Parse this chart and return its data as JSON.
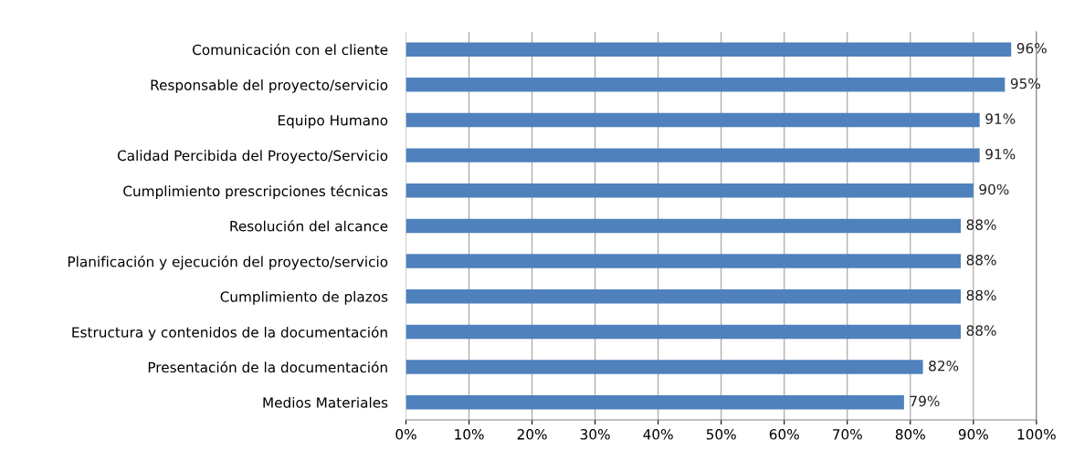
{
  "chart_data": {
    "type": "bar",
    "orientation": "horizontal",
    "categories": [
      "Comunicación con el cliente",
      "Responsable del proyecto/servicio",
      "Equipo Humano",
      "Calidad Percibida del Proyecto/Servicio",
      "Cumplimiento prescripciones técnicas",
      "Resolución del alcance",
      "Planificación y ejecución del proyecto/servicio",
      "Cumplimiento de plazos",
      "Estructura y contenidos de la documentación",
      "Presentación de la documentación",
      "Medios Materiales"
    ],
    "values": [
      96,
      95,
      91,
      91,
      90,
      88,
      88,
      88,
      88,
      82,
      79
    ],
    "value_labels": [
      "96%",
      "95%",
      "91%",
      "91%",
      "90%",
      "88%",
      "88%",
      "88%",
      "88%",
      "82%",
      "79%"
    ],
    "color": "#4f81bd",
    "xlim": [
      0,
      100
    ],
    "xticks": [
      {
        "value": 0,
        "label": "0%"
      },
      {
        "value": 10,
        "label": "10%"
      },
      {
        "value": 20,
        "label": "20%"
      },
      {
        "value": 30,
        "label": "30%"
      },
      {
        "value": 40,
        "label": "40%"
      },
      {
        "value": 50,
        "label": "50%"
      },
      {
        "value": 60,
        "label": "60%"
      },
      {
        "value": 70,
        "label": "70%"
      },
      {
        "value": 80,
        "label": "80%"
      },
      {
        "value": 90,
        "label": "90%"
      },
      {
        "value": 100,
        "label": "100%"
      }
    ],
    "grid": "x"
  }
}
